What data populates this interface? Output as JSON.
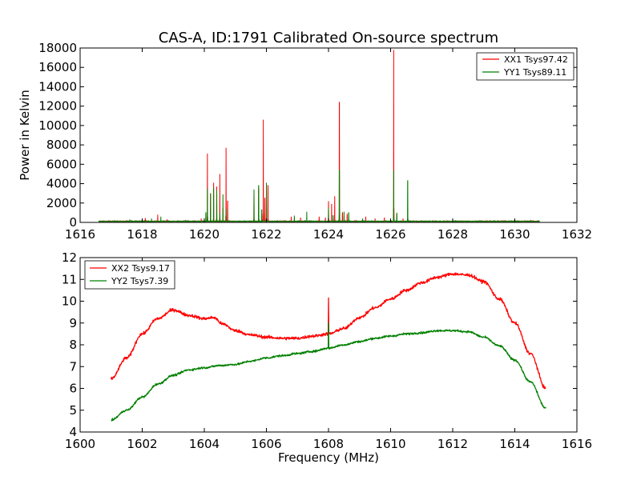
{
  "chart_data": [
    {
      "type": "line",
      "title": "CAS-A, ID:1791 Calibrated On-source spectrum",
      "xlabel": "",
      "ylabel": "Power in Kelvin",
      "xlim": [
        1616,
        1632
      ],
      "ylim": [
        0,
        18000
      ],
      "x_ticks": [
        "1616",
        "1618",
        "1620",
        "1622",
        "1624",
        "1626",
        "1628",
        "1630",
        "1632"
      ],
      "y_ticks": [
        "0",
        "2000",
        "4000",
        "6000",
        "8000",
        "10000",
        "12000",
        "14000",
        "16000",
        "18000"
      ],
      "legend_position": "top-right",
      "x_range": [
        1616.6,
        1630.8
      ],
      "baseline": 100,
      "series": [
        {
          "name": "XX1 Tsys97.42",
          "color": "#ff0000",
          "peaks": [
            {
              "x": 1617.6,
              "y": 300
            },
            {
              "x": 1618.1,
              "y": 450
            },
            {
              "x": 1618.5,
              "y": 800
            },
            {
              "x": 1618.8,
              "y": 300
            },
            {
              "x": 1619.4,
              "y": 250
            },
            {
              "x": 1619.9,
              "y": 400
            },
            {
              "x": 1620.1,
              "y": 7100
            },
            {
              "x": 1620.2,
              "y": 3000
            },
            {
              "x": 1620.3,
              "y": 4100
            },
            {
              "x": 1620.4,
              "y": 3700
            },
            {
              "x": 1620.5,
              "y": 5000
            },
            {
              "x": 1620.6,
              "y": 1500
            },
            {
              "x": 1620.7,
              "y": 7700
            },
            {
              "x": 1620.75,
              "y": 2200
            },
            {
              "x": 1621.6,
              "y": 3300
            },
            {
              "x": 1621.75,
              "y": 3500
            },
            {
              "x": 1621.9,
              "y": 10600
            },
            {
              "x": 1621.95,
              "y": 2500
            },
            {
              "x": 1622.05,
              "y": 3800
            },
            {
              "x": 1622.8,
              "y": 600
            },
            {
              "x": 1623.1,
              "y": 500
            },
            {
              "x": 1623.7,
              "y": 600
            },
            {
              "x": 1623.9,
              "y": 500
            },
            {
              "x": 1624.0,
              "y": 2200
            },
            {
              "x": 1624.1,
              "y": 1900
            },
            {
              "x": 1624.2,
              "y": 2700
            },
            {
              "x": 1624.35,
              "y": 12400
            },
            {
              "x": 1624.45,
              "y": 1000
            },
            {
              "x": 1624.6,
              "y": 900
            },
            {
              "x": 1625.2,
              "y": 600
            },
            {
              "x": 1625.5,
              "y": 400
            },
            {
              "x": 1625.8,
              "y": 500
            },
            {
              "x": 1626.1,
              "y": 17800
            },
            {
              "x": 1626.2,
              "y": 900
            },
            {
              "x": 1626.4,
              "y": 400
            }
          ]
        },
        {
          "name": "YY1 Tsys89.11",
          "color": "#008000",
          "peaks": [
            {
              "x": 1617.6,
              "y": 300
            },
            {
              "x": 1618.3,
              "y": 400
            },
            {
              "x": 1618.6,
              "y": 600
            },
            {
              "x": 1620.05,
              "y": 1000
            },
            {
              "x": 1620.1,
              "y": 3500
            },
            {
              "x": 1620.2,
              "y": 3000
            },
            {
              "x": 1620.3,
              "y": 3600
            },
            {
              "x": 1620.4,
              "y": 3300
            },
            {
              "x": 1620.5,
              "y": 1000
            },
            {
              "x": 1620.6,
              "y": 2900
            },
            {
              "x": 1620.7,
              "y": 1400
            },
            {
              "x": 1621.6,
              "y": 3400
            },
            {
              "x": 1621.75,
              "y": 3800
            },
            {
              "x": 1621.85,
              "y": 1300
            },
            {
              "x": 1622.0,
              "y": 4100
            },
            {
              "x": 1622.9,
              "y": 700
            },
            {
              "x": 1623.3,
              "y": 1100
            },
            {
              "x": 1624.0,
              "y": 1500
            },
            {
              "x": 1624.15,
              "y": 700
            },
            {
              "x": 1624.35,
              "y": 5400
            },
            {
              "x": 1624.5,
              "y": 1100
            },
            {
              "x": 1624.65,
              "y": 1000
            },
            {
              "x": 1625.1,
              "y": 400
            },
            {
              "x": 1626.1,
              "y": 5400
            },
            {
              "x": 1626.2,
              "y": 1000
            },
            {
              "x": 1626.55,
              "y": 4300
            },
            {
              "x": 1627.0,
              "y": 200
            }
          ]
        }
      ]
    },
    {
      "type": "line",
      "title": "",
      "xlabel": "Frequency (MHz)",
      "ylabel": "",
      "xlim": [
        1600,
        1616
      ],
      "ylim": [
        4,
        12
      ],
      "x_ticks": [
        "1600",
        "1602",
        "1604",
        "1606",
        "1608",
        "1610",
        "1612",
        "1614",
        "1616"
      ],
      "y_ticks": [
        "4",
        "5",
        "6",
        "7",
        "8",
        "9",
        "10",
        "11",
        "12"
      ],
      "legend_position": "top-left",
      "x_range": [
        1601,
        1615
      ],
      "series": [
        {
          "name": "XX2 Tsys9.17",
          "color": "#ff0000",
          "noise": 0.12,
          "points": [
            [
              1601.0,
              6.45
            ],
            [
              1601.5,
              7.4
            ],
            [
              1602.0,
              8.5
            ],
            [
              1602.5,
              9.2
            ],
            [
              1603.0,
              9.6
            ],
            [
              1603.5,
              9.35
            ],
            [
              1604.0,
              9.2
            ],
            [
              1604.3,
              9.25
            ],
            [
              1604.6,
              8.95
            ],
            [
              1605.0,
              8.65
            ],
            [
              1605.5,
              8.45
            ],
            [
              1606.0,
              8.35
            ],
            [
              1606.5,
              8.3
            ],
            [
              1607.0,
              8.3
            ],
            [
              1607.5,
              8.4
            ],
            [
              1608.0,
              8.5
            ],
            [
              1608.5,
              8.75
            ],
            [
              1609.0,
              9.25
            ],
            [
              1609.5,
              9.7
            ],
            [
              1610.0,
              10.1
            ],
            [
              1610.5,
              10.5
            ],
            [
              1611.0,
              10.85
            ],
            [
              1611.5,
              11.1
            ],
            [
              1612.0,
              11.25
            ],
            [
              1612.5,
              11.2
            ],
            [
              1613.0,
              10.9
            ],
            [
              1613.5,
              10.1
            ],
            [
              1614.0,
              9.0
            ],
            [
              1614.5,
              7.6
            ],
            [
              1615.0,
              6.0
            ]
          ],
          "spikes": [
            {
              "x": 1608.0,
              "y": 10.15
            }
          ]
        },
        {
          "name": "YY2 Tsys7.39",
          "color": "#008000",
          "noise": 0.08,
          "points": [
            [
              1601.0,
              4.55
            ],
            [
              1601.5,
              5.0
            ],
            [
              1602.0,
              5.6
            ],
            [
              1602.5,
              6.2
            ],
            [
              1603.0,
              6.6
            ],
            [
              1603.5,
              6.85
            ],
            [
              1604.0,
              6.95
            ],
            [
              1604.5,
              7.05
            ],
            [
              1605.0,
              7.1
            ],
            [
              1605.5,
              7.25
            ],
            [
              1606.0,
              7.4
            ],
            [
              1606.5,
              7.5
            ],
            [
              1607.0,
              7.6
            ],
            [
              1607.5,
              7.7
            ],
            [
              1608.0,
              7.85
            ],
            [
              1608.5,
              8.0
            ],
            [
              1609.0,
              8.15
            ],
            [
              1609.5,
              8.3
            ],
            [
              1610.0,
              8.4
            ],
            [
              1610.5,
              8.5
            ],
            [
              1611.0,
              8.55
            ],
            [
              1611.5,
              8.65
            ],
            [
              1612.0,
              8.65
            ],
            [
              1612.5,
              8.6
            ],
            [
              1613.0,
              8.35
            ],
            [
              1613.5,
              7.95
            ],
            [
              1614.0,
              7.3
            ],
            [
              1614.5,
              6.3
            ],
            [
              1615.0,
              5.1
            ]
          ],
          "spikes": [
            {
              "x": 1608.0,
              "y": 9.0
            }
          ]
        }
      ]
    }
  ]
}
